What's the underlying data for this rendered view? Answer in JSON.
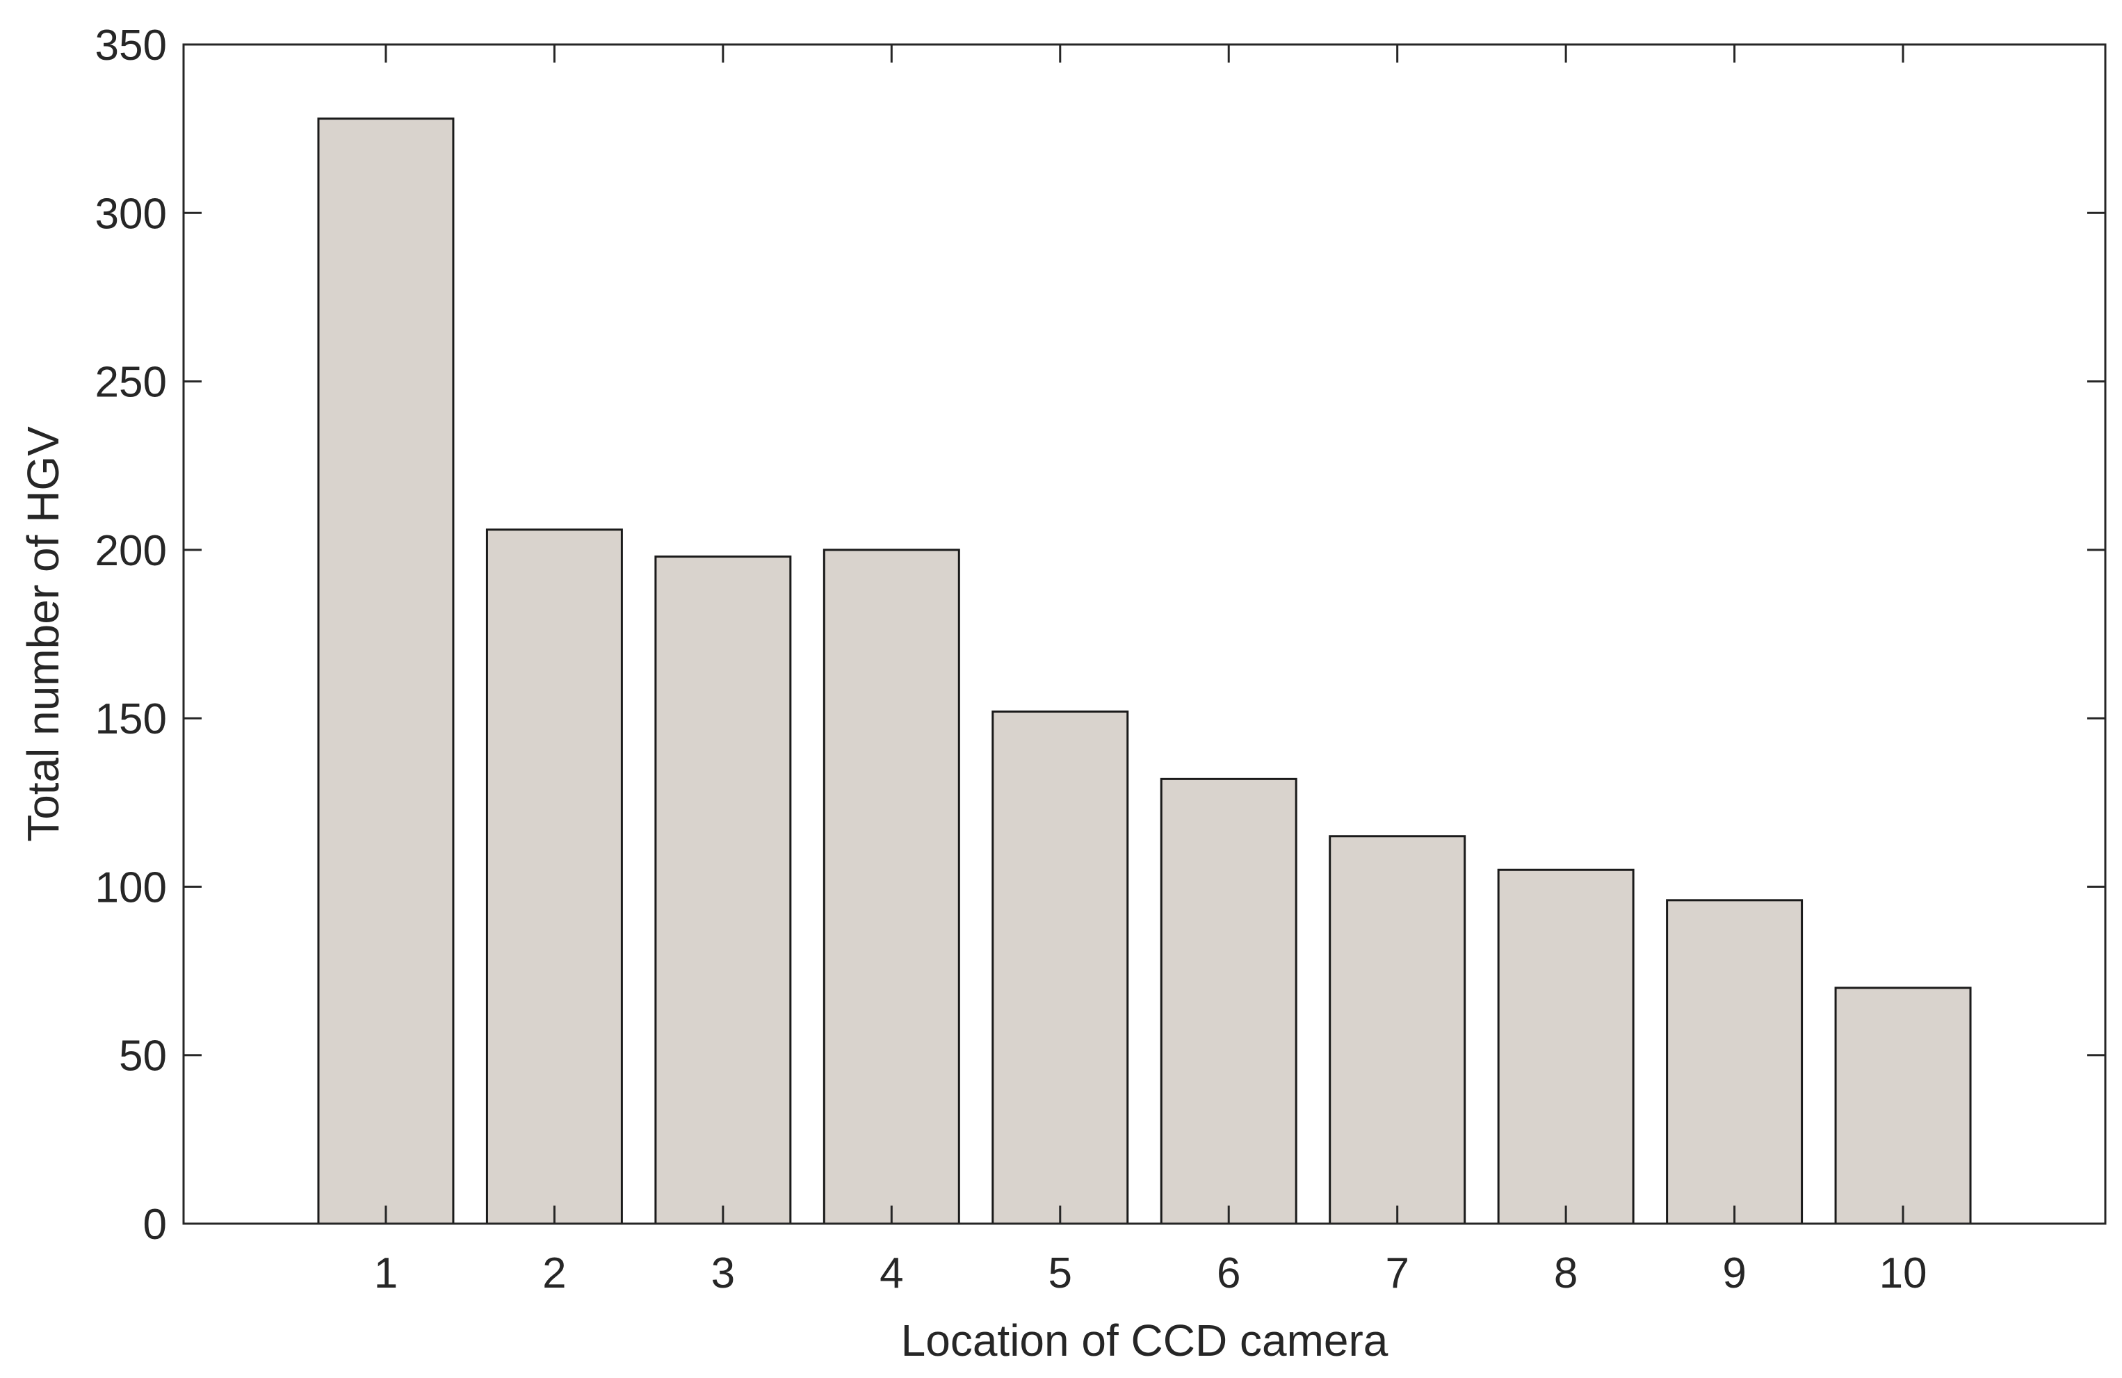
{
  "chart_data": {
    "type": "bar",
    "title": "",
    "xlabel": "Location of CCD camera",
    "ylabel": "Total number of HGV",
    "categories": [
      "1",
      "2",
      "3",
      "4",
      "5",
      "6",
      "7",
      "8",
      "9",
      "10"
    ],
    "values": [
      328,
      206,
      198,
      200,
      152,
      132,
      115,
      105,
      96,
      70
    ],
    "xlim": [
      -0.2,
      11.2
    ],
    "ylim": [
      0,
      350
    ],
    "yticks": [
      0,
      50,
      100,
      150,
      200,
      250,
      300,
      350
    ],
    "grid": false,
    "legend": "none",
    "bar_fill": "#d9d3cd",
    "bar_edge": "#1a1a1a"
  }
}
